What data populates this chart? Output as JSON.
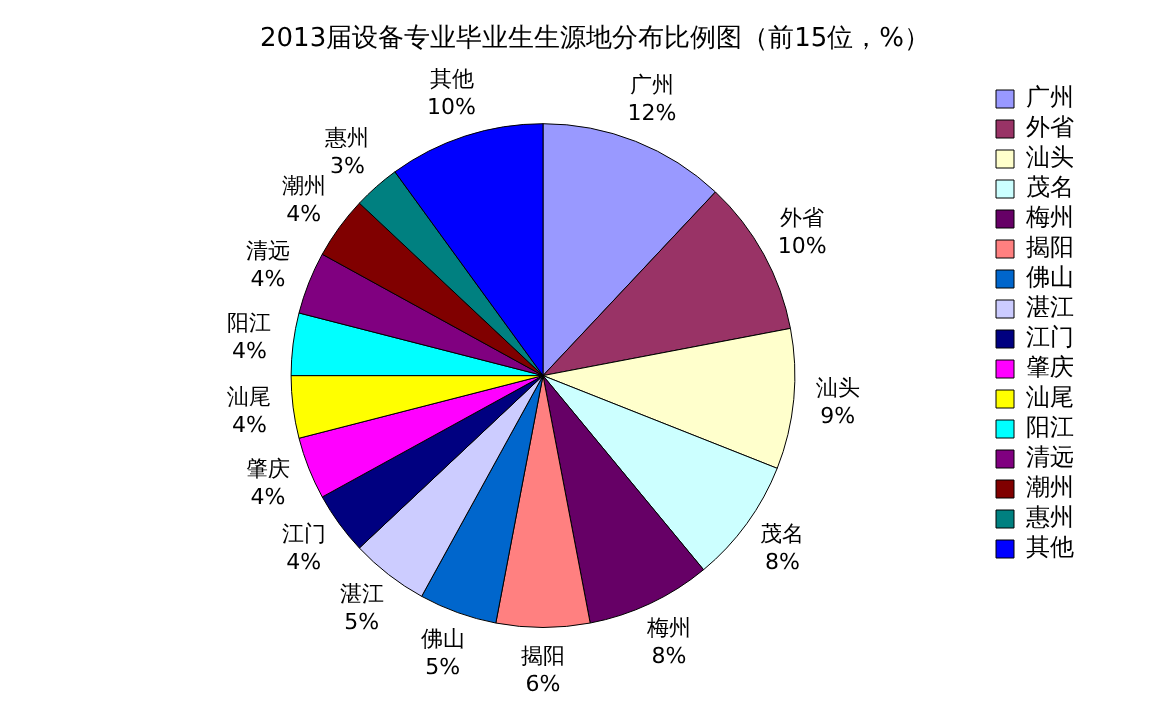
{
  "chart_data": {
    "type": "pie",
    "title": "2013届设备专业毕业生生源地分布比例图（前15位，%）",
    "categories": [
      "广州",
      "外省",
      "汕头",
      "茂名",
      "梅州",
      "揭阳",
      "佛山",
      "湛江",
      "江门",
      "肇庆",
      "汕尾",
      "阳江",
      "清远",
      "潮州",
      "惠州",
      "其他"
    ],
    "values": [
      12,
      10,
      9,
      8,
      8,
      6,
      5,
      5,
      4,
      4,
      4,
      4,
      4,
      4,
      3,
      10
    ],
    "value_labels": [
      "12%",
      "10%",
      "9%",
      "8%",
      "8%",
      "6%",
      "5%",
      "5%",
      "4%",
      "4%",
      "4%",
      "4%",
      "4%",
      "4%",
      "3%",
      "10%"
    ],
    "colors": [
      "#9999ff",
      "#993366",
      "#ffffcc",
      "#ccffff",
      "#660066",
      "#ff8080",
      "#0066cc",
      "#ccccff",
      "#000080",
      "#ff00ff",
      "#ffff00",
      "#00ffff",
      "#800080",
      "#800000",
      "#008080",
      "#0000ff"
    ],
    "legend": "right"
  }
}
